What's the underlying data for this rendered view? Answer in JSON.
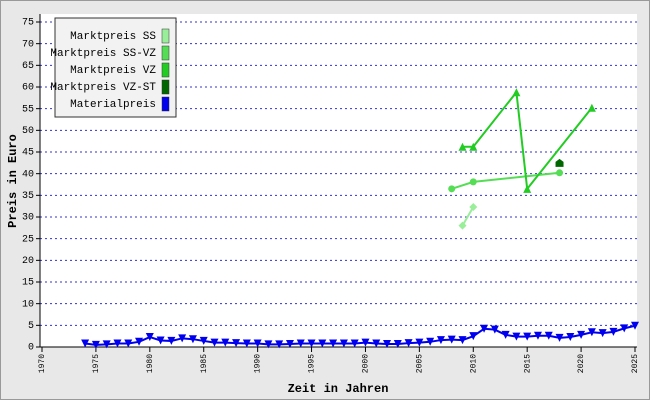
{
  "chart_data": {
    "type": "line",
    "x_label": "Zeit in Jahren",
    "y_label": "Preis in Euro",
    "xlim": [
      1970,
      2025
    ],
    "xticks": [
      1970,
      1975,
      1980,
      1985,
      1990,
      1995,
      2000,
      2005,
      2010,
      2015,
      2020,
      2025
    ],
    "ylim": [
      0,
      75
    ],
    "yticks": [
      0,
      5,
      10,
      15,
      20,
      25,
      30,
      35,
      40,
      45,
      50,
      55,
      60,
      65,
      70,
      75
    ],
    "grid": true,
    "legend": "top-left",
    "series": [
      {
        "name": "Marktpreis SS",
        "color": "#99ee99",
        "marker": "diamond",
        "x": [
          2009,
          2010
        ],
        "values": [
          28,
          32.3
        ]
      },
      {
        "name": "Marktpreis SS-VZ",
        "color": "#55dd55",
        "marker": "circle",
        "x": [
          2008,
          2010,
          2018
        ],
        "values": [
          36.5,
          38.1,
          40.2
        ]
      },
      {
        "name": "Marktpreis VZ",
        "color": "#22cc22",
        "marker": "triangle-up",
        "x": [
          2009,
          2010,
          2014,
          2015,
          2021
        ],
        "values": [
          46.2,
          46.2,
          58.8,
          36.5,
          55.2
        ]
      },
      {
        "name": "Marktpreis VZ-ST",
        "color": "#006600",
        "marker": "pentagon",
        "x": [
          2018
        ],
        "values": [
          42.5
        ]
      },
      {
        "name": "Materialpreis",
        "color": "#0000ee",
        "marker": "triangle-down",
        "x": [
          1974,
          1975,
          1976,
          1977,
          1978,
          1979,
          1980,
          1981,
          1982,
          1983,
          1984,
          1985,
          1986,
          1987,
          1988,
          1989,
          1990,
          1991,
          1992,
          1993,
          1994,
          1995,
          1996,
          1997,
          1998,
          1999,
          2000,
          2001,
          2002,
          2003,
          2004,
          2005,
          2006,
          2007,
          2008,
          2009,
          2010,
          2011,
          2012,
          2013,
          2014,
          2015,
          2016,
          2017,
          2018,
          2019,
          2020,
          2021,
          2022,
          2023,
          2024,
          2025
        ],
        "values": [
          0.8,
          0.5,
          0.6,
          0.8,
          0.8,
          1.2,
          2.3,
          1.5,
          1.4,
          2.0,
          1.8,
          1.4,
          1.0,
          1.0,
          0.9,
          0.8,
          0.8,
          0.6,
          0.6,
          0.7,
          0.8,
          0.8,
          0.8,
          0.8,
          0.8,
          0.8,
          1.0,
          0.8,
          0.7,
          0.7,
          0.9,
          1.0,
          1.2,
          1.6,
          1.7,
          1.6,
          2.5,
          4.2,
          4.0,
          2.8,
          2.4,
          2.4,
          2.6,
          2.6,
          2.1,
          2.3,
          2.8,
          3.4,
          3.2,
          3.5,
          4.3,
          4.9
        ]
      }
    ]
  }
}
